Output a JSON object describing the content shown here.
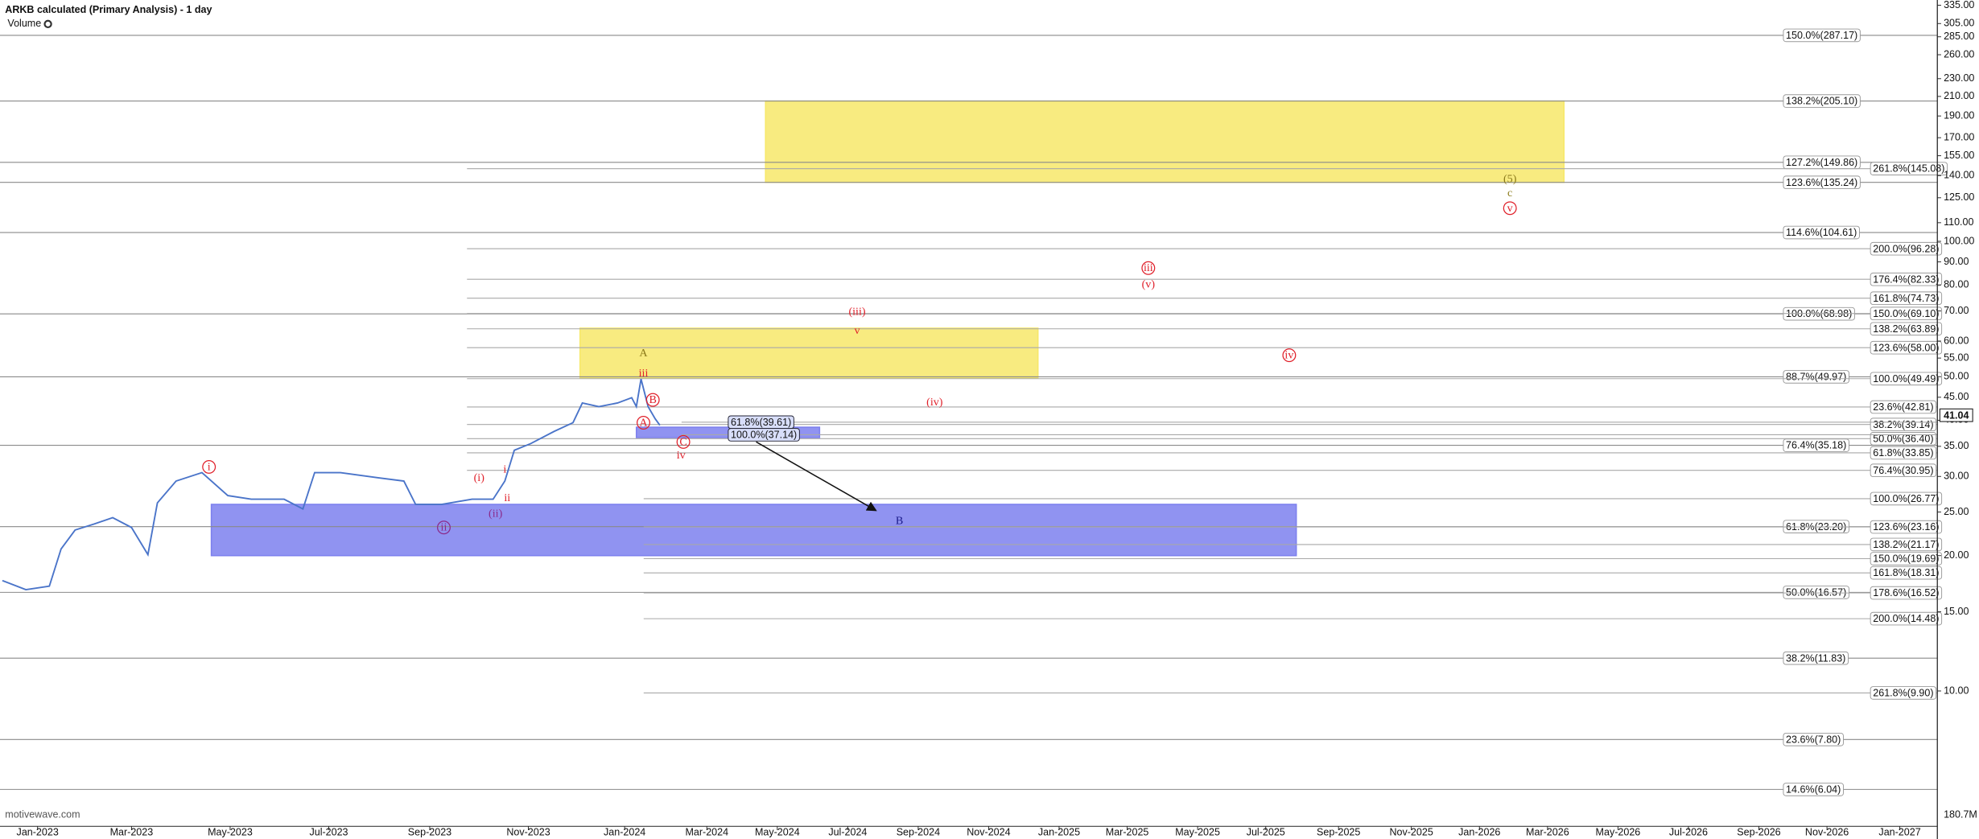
{
  "chart_data": {
    "type": "line",
    "title": "ARKB calculated (Primary Analysis) - 1 day",
    "indicator": "Volume",
    "watermark": "motivewave.com",
    "volume_max_label": "180.7M",
    "last_price": 41.04,
    "yscale": "log",
    "xlim": [
      -16,
      809
    ],
    "ylim": [
      5.0,
      344
    ],
    "xticks": [
      {
        "value": 0,
        "label": "Jan-2023"
      },
      {
        "value": 40,
        "label": "Mar-2023"
      },
      {
        "value": 82,
        "label": "May-2023"
      },
      {
        "value": 124,
        "label": "Jul-2023"
      },
      {
        "value": 167,
        "label": "Sep-2023"
      },
      {
        "value": 209,
        "label": "Nov-2023"
      },
      {
        "value": 250,
        "label": "Jan-2024"
      },
      {
        "value": 285,
        "label": "Mar-2024"
      },
      {
        "value": 315,
        "label": "May-2024"
      },
      {
        "value": 345,
        "label": "Jul-2024"
      },
      {
        "value": 375,
        "label": "Sep-2024"
      },
      {
        "value": 405,
        "label": "Nov-2024"
      },
      {
        "value": 435,
        "label": "Jan-2025"
      },
      {
        "value": 464,
        "label": "Mar-2025"
      },
      {
        "value": 494,
        "label": "May-2025"
      },
      {
        "value": 523,
        "label": "Jul-2025"
      },
      {
        "value": 554,
        "label": "Sep-2025"
      },
      {
        "value": 585,
        "label": "Nov-2025"
      },
      {
        "value": 614,
        "label": "Jan-2026"
      },
      {
        "value": 643,
        "label": "Mar-2026"
      },
      {
        "value": 673,
        "label": "May-2026"
      },
      {
        "value": 703,
        "label": "Jul-2026"
      },
      {
        "value": 733,
        "label": "Sep-2026"
      },
      {
        "value": 762,
        "label": "Nov-2026"
      },
      {
        "value": 793,
        "label": "Jan-2027"
      }
    ],
    "yticks": [
      {
        "value": 335,
        "label": "335.00"
      },
      {
        "value": 305,
        "label": "305.00"
      },
      {
        "value": 285,
        "label": "285.00"
      },
      {
        "value": 260,
        "label": "260.00"
      },
      {
        "value": 230,
        "label": "230.00"
      },
      {
        "value": 210,
        "label": "210.00"
      },
      {
        "value": 190,
        "label": "190.00"
      },
      {
        "value": 170,
        "label": "170.00"
      },
      {
        "value": 155,
        "label": "155.00"
      },
      {
        "value": 140,
        "label": "140.00"
      },
      {
        "value": 125,
        "label": "125.00"
      },
      {
        "value": 110,
        "label": "110.00"
      },
      {
        "value": 100,
        "label": "100.00"
      },
      {
        "value": 90,
        "label": "90.00"
      },
      {
        "value": 80,
        "label": "80.00"
      },
      {
        "value": 70,
        "label": "70.00"
      },
      {
        "value": 60,
        "label": "60.00"
      },
      {
        "value": 55,
        "label": "55.00"
      },
      {
        "value": 50,
        "label": "50.00"
      },
      {
        "value": 45,
        "label": "45.00"
      },
      {
        "value": 40,
        "label": "40.00"
      },
      {
        "value": 35,
        "label": "35.00"
      },
      {
        "value": 30,
        "label": "30.00"
      },
      {
        "value": 25,
        "label": "25.00"
      },
      {
        "value": 20,
        "label": "20.00"
      },
      {
        "value": 15,
        "label": "15.00"
      },
      {
        "value": 10,
        "label": "10.00"
      }
    ],
    "price": {
      "color": "#4a74c9",
      "x": [
        -15,
        -5,
        5,
        10,
        16,
        24,
        32,
        40,
        47,
        51,
        59,
        70,
        81,
        91,
        105,
        113,
        118,
        129,
        145,
        156,
        161,
        172,
        185,
        194,
        199,
        203,
        210,
        220,
        228,
        232,
        239,
        247,
        253,
        255,
        257,
        260,
        263,
        265
      ],
      "values": [
        17.6,
        16.8,
        17.1,
        20.7,
        22.8,
        23.5,
        24.3,
        23.1,
        20.1,
        26.2,
        29.3,
        30.6,
        27.2,
        26.7,
        26.7,
        25.4,
        30.6,
        30.6,
        29.8,
        29.3,
        26.0,
        26.0,
        26.7,
        26.7,
        29.3,
        34.3,
        35.5,
        37.8,
        39.5,
        43.7,
        42.9,
        43.7,
        44.9,
        42.9,
        49.4,
        42.9,
        40.3,
        39.0
      ]
    },
    "zones": [
      {
        "color": "#f7e86a",
        "x": [
          310,
          650
        ],
        "y": [
          135.24,
          205.1
        ]
      },
      {
        "color": "#f7e86a",
        "x": [
          231,
          426
        ],
        "y": [
          49.7,
          64.1
        ]
      },
      {
        "color": "#7d80ee",
        "x": [
          74,
          536
        ],
        "y": [
          20.0,
          26.0
        ]
      },
      {
        "color": "#7d80ee",
        "x": [
          255,
          333
        ],
        "y": [
          36.6,
          38.6
        ]
      }
    ],
    "levels": [
      {
        "labels": [
          "150.0%(287.17)",
          "138.2%(205.10)",
          "127.2%(149.86)",
          "123.6%(135.24)",
          "114.6%(104.61)",
          "100.0%(68.98)",
          "88.7%(49.97)",
          "76.4%(35.18)",
          "61.8%(23.20)",
          "50.0%(16.57)",
          "38.2%(11.83)",
          "23.6%(7.80)",
          "14.6%(6.04)"
        ],
        "values": [
          287.17,
          205.1,
          149.86,
          135.24,
          104.61,
          68.98,
          49.97,
          35.18,
          23.2,
          16.57,
          11.83,
          7.8,
          6.04
        ]
      },
      {
        "labels": [
          "261.8%(145.08)",
          "200.0%(96.28)",
          "176.4%(82.33)",
          "161.8%(74.73)",
          "150.0%(69.10)",
          "138.2%(63.89)",
          "123.6%(58.00)",
          "100.0%(49.49)",
          "23.6%(42.81)",
          "38.2%(39.14)",
          "50.0%(36.40)",
          "61.8%(33.85)",
          "76.4%(30.95)"
        ],
        "values": [
          145.08,
          96.28,
          82.33,
          74.73,
          69.1,
          63.89,
          58.0,
          49.49,
          42.81,
          39.14,
          36.4,
          33.85,
          30.95
        ]
      },
      {
        "labels": [
          "100.0%(26.77)",
          "123.6%(23.16)",
          "138.2%(21.17)",
          "150.0%(19.69)",
          "161.8%(18.31)",
          "178.6%(16.52)",
          "200.0%(14.48)",
          "261.8%(9.90)"
        ],
        "values": [
          26.77,
          23.16,
          21.17,
          19.69,
          18.31,
          16.52,
          14.48,
          9.9
        ]
      },
      {
        "labels": [
          "61.8%(39.61)",
          "100.0%(37.14)"
        ],
        "values": [
          39.61,
          37.14
        ]
      }
    ],
    "wave_labels": [
      {
        "text": "i",
        "circled": true,
        "color": "#e0202a",
        "x": 73,
        "y": 31.5
      },
      {
        "text": "ii",
        "circled": true,
        "color": "#8b2a8b",
        "x": 173,
        "y": 23.1
      },
      {
        "text": "(i)",
        "circled": false,
        "color": "#e0202a",
        "x": 188,
        "y": 29.8
      },
      {
        "text": "(ii)",
        "circled": false,
        "color": "#8b2a8b",
        "x": 195,
        "y": 24.8
      },
      {
        "text": "i",
        "circled": false,
        "color": "#e0202a",
        "x": 199,
        "y": 31.1
      },
      {
        "text": "ii",
        "circled": false,
        "color": "#e0202a",
        "x": 200,
        "y": 26.9
      },
      {
        "text": "A",
        "circled": false,
        "color": "#8b7a1a",
        "x": 258,
        "y": 56.4
      },
      {
        "text": "iii",
        "circled": false,
        "color": "#e0202a",
        "x": 258,
        "y": 50.9
      },
      {
        "text": "B",
        "circled": true,
        "color": "#e0202a",
        "x": 262,
        "y": 44.4
      },
      {
        "text": "A",
        "circled": true,
        "color": "#e0202a",
        "x": 258,
        "y": 39.5
      },
      {
        "text": "C",
        "circled": true,
        "color": "#e0202a",
        "x": 275,
        "y": 35.8
      },
      {
        "text": "iv",
        "circled": false,
        "color": "#e0202a",
        "x": 274,
        "y": 33.4
      },
      {
        "text": "(iii)",
        "circled": false,
        "color": "#e0202a",
        "x": 349,
        "y": 69.8
      },
      {
        "text": "v",
        "circled": false,
        "color": "#e0202a",
        "x": 349,
        "y": 63.3
      },
      {
        "text": "(iv)",
        "circled": false,
        "color": "#e0202a",
        "x": 382,
        "y": 43.9
      },
      {
        "text": "B",
        "circled": false,
        "color": "#1a1a8b",
        "x": 367,
        "y": 23.9
      },
      {
        "text": "iii",
        "circled": true,
        "color": "#e0202a",
        "x": 473,
        "y": 87.2
      },
      {
        "text": "(v)",
        "circled": false,
        "color": "#e0202a",
        "x": 473,
        "y": 80.2
      },
      {
        "text": "iv",
        "circled": true,
        "color": "#e0202a",
        "x": 533,
        "y": 55.8
      },
      {
        "text": "(5)",
        "circled": false,
        "color": "#8b7a1a",
        "x": 627,
        "y": 137.5
      },
      {
        "text": "c",
        "circled": false,
        "color": "#8b7a1a",
        "x": 627,
        "y": 128
      },
      {
        "text": "v",
        "circled": true,
        "color": "#e0202a",
        "x": 627,
        "y": 118.5
      }
    ],
    "arrow": {
      "x": [
        306,
        357
      ],
      "y": [
        35.8,
        25.2
      ]
    }
  }
}
